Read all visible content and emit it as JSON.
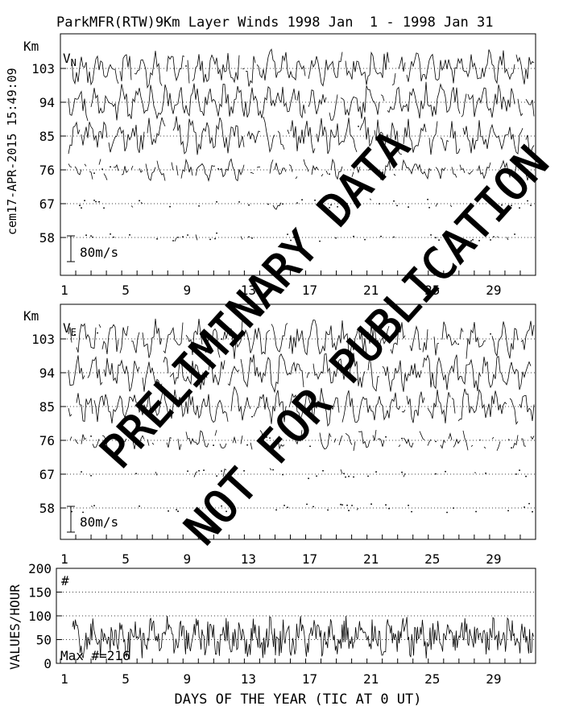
{
  "title": "ParkMFR(RTW)9Km Layer Winds 1998 Jan  1 - 1998 Jan 31",
  "side_stamp": "cem17-APR-2015 15:49:09",
  "watermark": {
    "line1": "PRELIMINARY DATA",
    "line2": "NOT FOR PUBLICATION"
  },
  "chart_data": [
    {
      "type": "line",
      "panel": "V_N",
      "component_label": "V",
      "component_subscript": "N",
      "yunit": "Km",
      "y_ticks": [
        103,
        94,
        85,
        76,
        67,
        58
      ],
      "x_ticks": [
        1,
        5,
        9,
        13,
        17,
        21,
        25,
        29
      ],
      "xlim": [
        1,
        32
      ],
      "scale_bar_label": "80m/s",
      "grid": "dotted horizontal at each altitude",
      "series_coverage": [
        0.95,
        0.97,
        0.97,
        0.75,
        0.2,
        0.1
      ]
    },
    {
      "type": "line",
      "panel": "V_E",
      "component_label": "V",
      "component_subscript": "E",
      "yunit": "Km",
      "y_ticks": [
        103,
        94,
        85,
        76,
        67,
        58
      ],
      "x_ticks": [
        1,
        5,
        9,
        13,
        17,
        21,
        25,
        29
      ],
      "xlim": [
        1,
        32
      ],
      "scale_bar_label": "80m/s",
      "grid": "dotted horizontal at each altitude",
      "series_coverage": [
        0.95,
        0.97,
        0.97,
        0.75,
        0.22,
        0.08
      ]
    },
    {
      "type": "line",
      "panel": "count",
      "ylabel": "VALUES/HOUR",
      "y_ticks": [
        0,
        50,
        100,
        150,
        200
      ],
      "ylim": [
        0,
        200
      ],
      "x_ticks": [
        1,
        5,
        9,
        13,
        17,
        21,
        25,
        29
      ],
      "xlim": [
        1,
        32
      ],
      "xlabel": "DAYS OF THE YEAR (TIC AT 0 UT)",
      "symbol_label": "#",
      "max_label": "Max #=216",
      "typical_range": [
        20,
        90
      ]
    }
  ]
}
